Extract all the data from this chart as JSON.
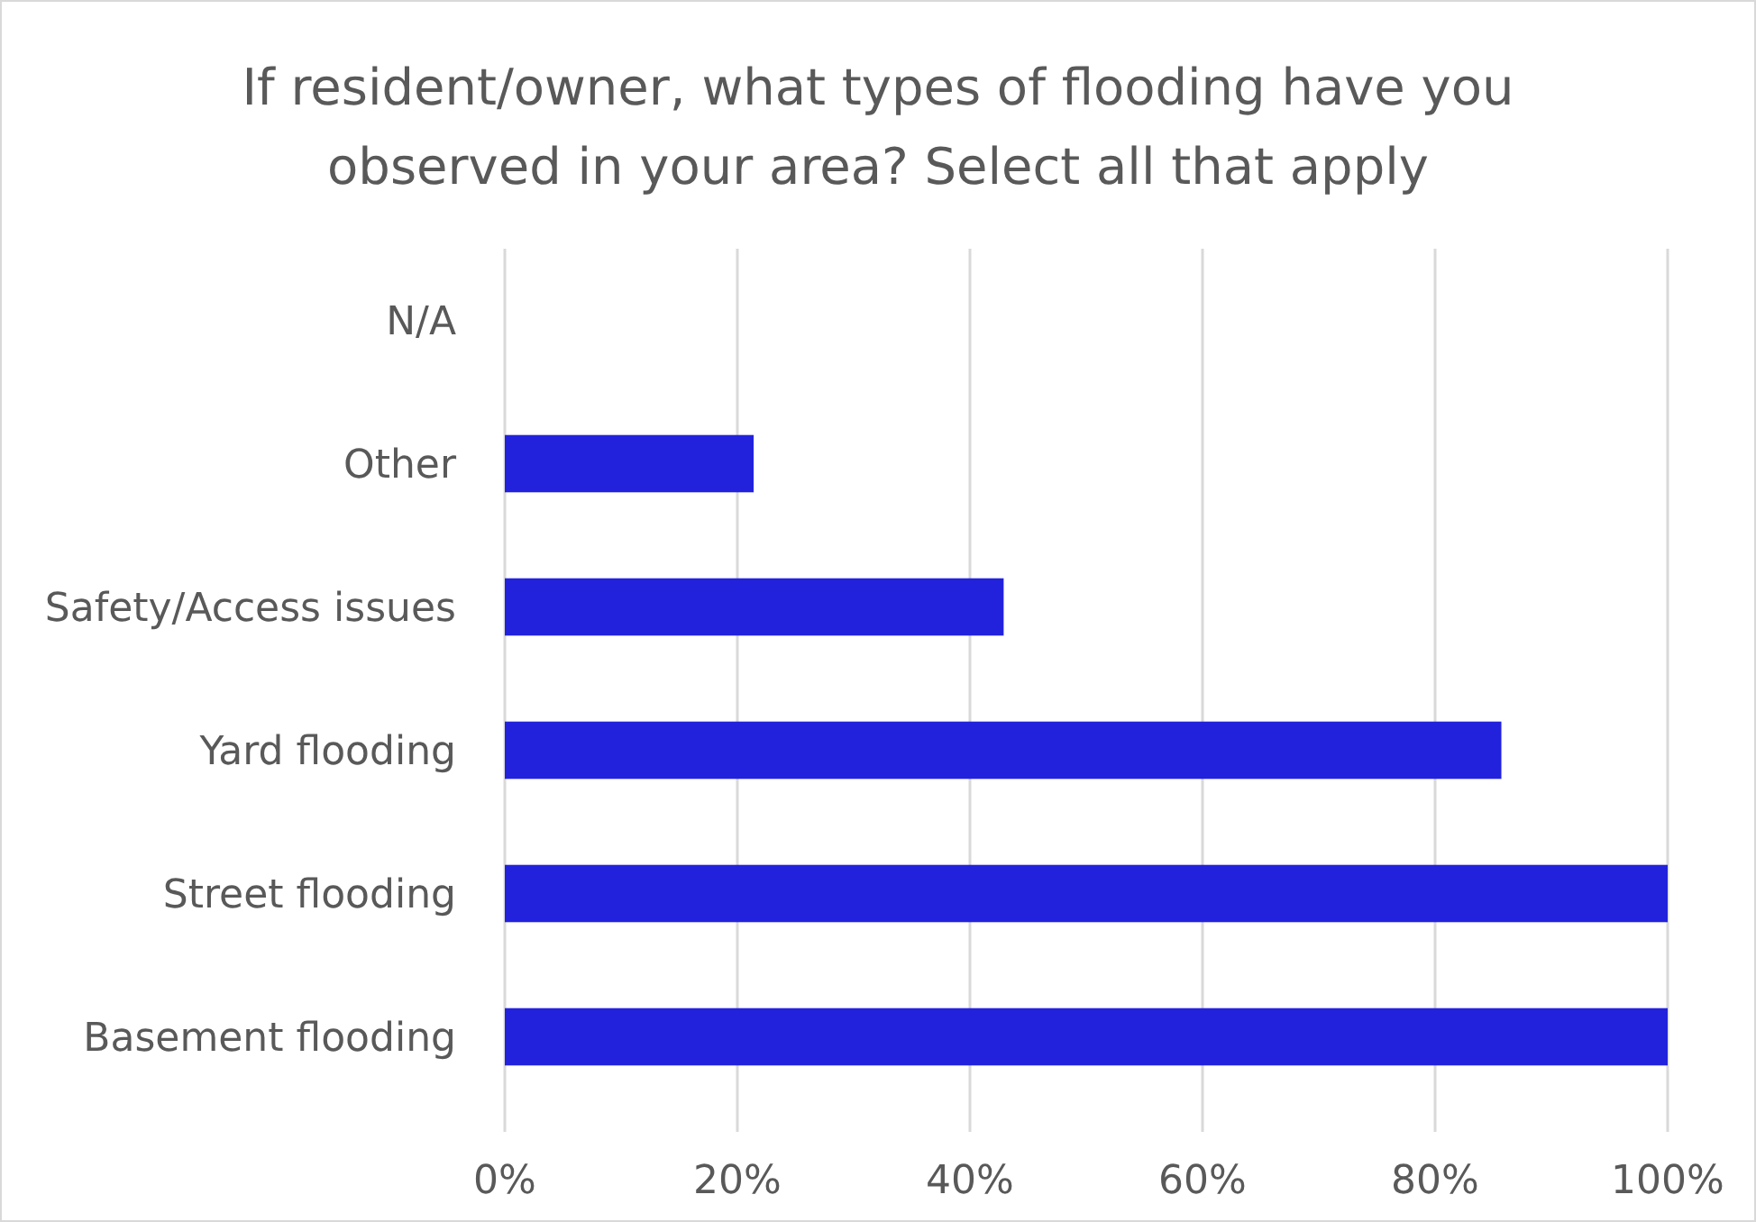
{
  "chart_data": {
    "type": "bar",
    "orientation": "horizontal",
    "title": "If resident/owner, what types of flooding have you observed in your area? Select all that apply",
    "categories": [
      "N/A",
      "Other",
      "Safety/Access issues",
      "Yard flooding",
      "Street flooding",
      "Basement flooding"
    ],
    "values": [
      0,
      21.4,
      42.9,
      85.7,
      100,
      100
    ],
    "color": "#2222dd",
    "xlim": [
      0,
      100
    ],
    "xticks": [
      {
        "value": 0,
        "label": "0%"
      },
      {
        "value": 20,
        "label": "20%"
      },
      {
        "value": 40,
        "label": "40%"
      },
      {
        "value": 60,
        "label": "60%"
      },
      {
        "value": 80,
        "label": "80%"
      },
      {
        "value": 100,
        "label": "100%"
      }
    ],
    "grid": "x"
  }
}
